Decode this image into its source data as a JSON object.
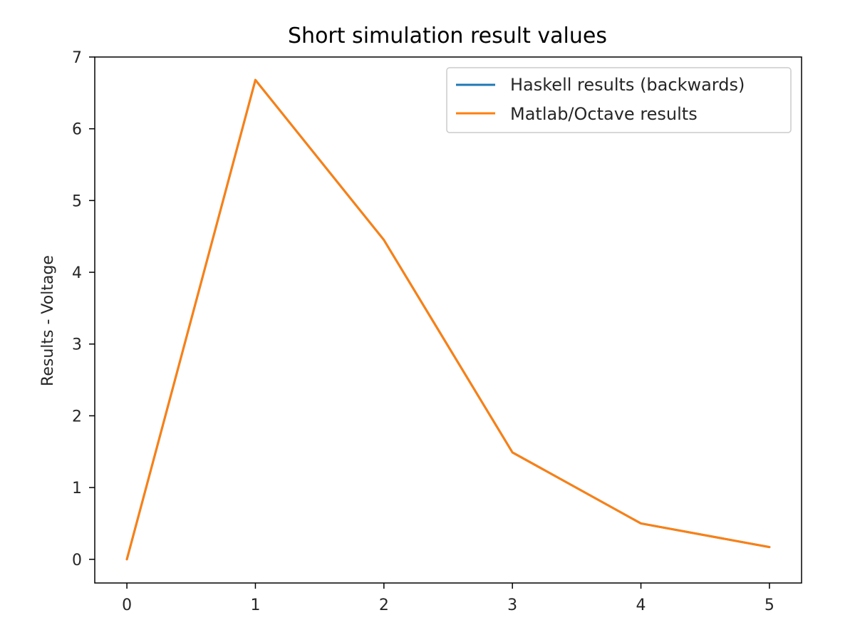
{
  "chart_data": {
    "type": "line",
    "title": "Short simulation result values",
    "xlabel": "",
    "ylabel": "Results - Voltage",
    "xlim": [
      -0.25,
      5.25
    ],
    "ylim": [
      -0.33,
      7
    ],
    "xticks": [
      0,
      1,
      2,
      3,
      4,
      5
    ],
    "yticks": [
      0,
      1,
      2,
      3,
      4,
      5,
      6,
      7
    ],
    "grid": false,
    "legend_position": "top-right",
    "x": [
      0,
      1,
      2,
      3,
      4,
      5
    ],
    "series": [
      {
        "name": "Haskell results (backwards)",
        "color": "#1f77b4",
        "values": [
          0,
          6.68,
          4.45,
          1.49,
          0.5,
          0.17
        ]
      },
      {
        "name": "Matlab/Octave results",
        "color": "#ff7f0e",
        "values": [
          0,
          6.68,
          4.45,
          1.49,
          0.5,
          0.17
        ]
      }
    ]
  }
}
